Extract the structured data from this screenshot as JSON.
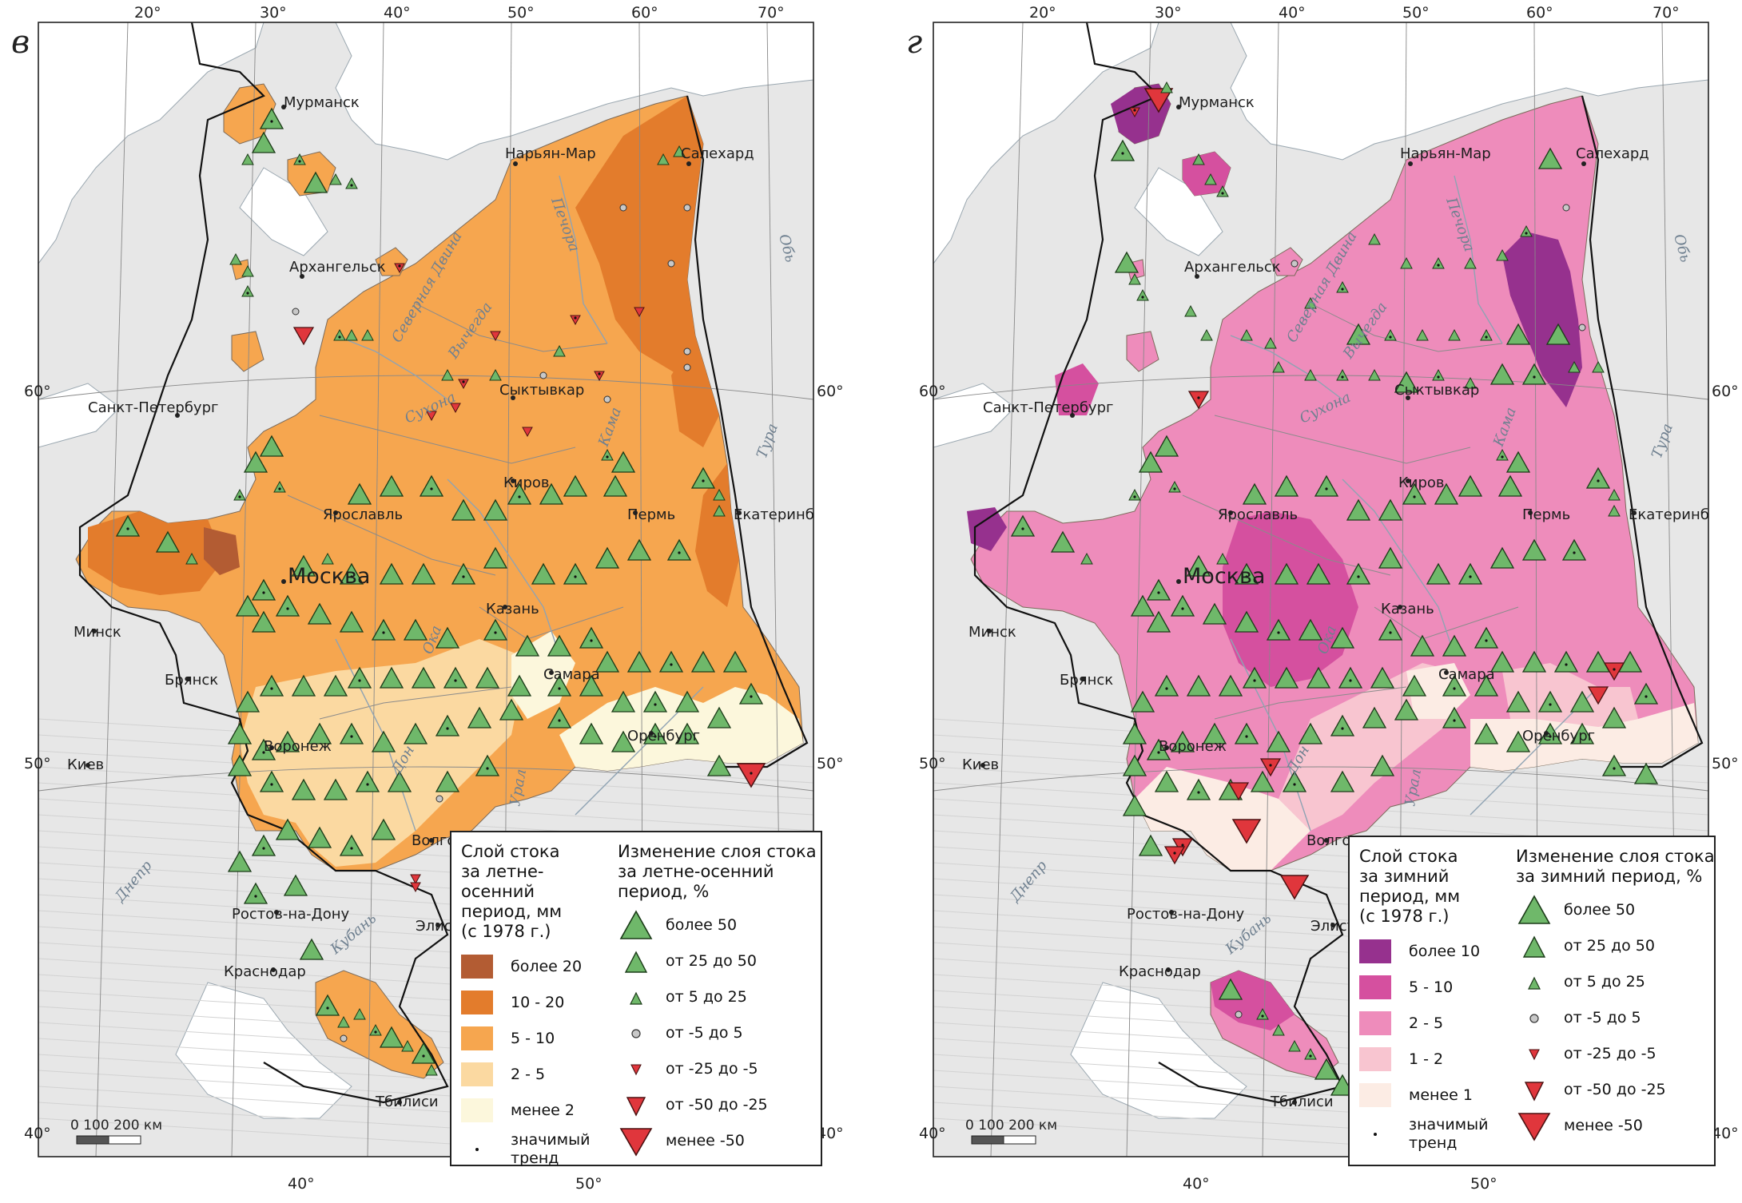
{
  "colors": {
    "land": "#e7e7e7",
    "sea": "#ffffff",
    "boundary": "#111111",
    "tri_up_fill": "#6fb86a",
    "tri_down_fill": "#e0363c",
    "circle_fill": "#c8c8c8"
  },
  "panels": [
    {
      "id": "v",
      "letter": "в",
      "top_ticks": [
        "20°",
        "30°",
        "40°",
        "50°",
        "60°",
        "70°"
      ],
      "bottom_ticks": [
        "40°",
        "50°"
      ],
      "left_ticks": [
        "60°",
        "50°",
        "40°"
      ],
      "right_ticks": [
        "60°",
        "50°",
        "40°"
      ],
      "scale_label": "0   100  200 км",
      "cities": [
        "Мурманск",
        "Нарьян-Мар",
        "Салехард",
        "Архангельск",
        "Санкт-Петербург",
        "Сыктывкар",
        "Киров",
        "Ярославль",
        "Пермь",
        "Екатеринбург",
        "Москва",
        "Минск",
        "Казань",
        "Брянск",
        "Самара",
        "Киев",
        "Воронеж",
        "Оренбург",
        "Волгоград",
        "Ростов-на-Дону",
        "Элиста",
        "Краснодар",
        "Тбилиси"
      ],
      "rivers": [
        "Северная Двина",
        "Вычегда",
        "Сухона",
        "Печора",
        "Кама",
        "Обь",
        "Тура",
        "Днепр",
        "Кубань",
        "Урал",
        "Ока",
        "Дон"
      ],
      "legend": {
        "layer_title": [
          "Слой стока",
          "за летне-осенний",
          "период, мм",
          "(с 1978 г.)"
        ],
        "layer_classes": [
          {
            "label": "более 20",
            "color": "#b35c33"
          },
          {
            "label": "10 - 20",
            "color": "#e37c2c"
          },
          {
            "label": "5 - 10",
            "color": "#f6a64f"
          },
          {
            "label": "2 - 5",
            "color": "#fbd9a1"
          },
          {
            "label": "менее 2",
            "color": "#fcf7dc"
          }
        ],
        "trend_label": [
          "значимый",
          "тренд"
        ],
        "change_title": [
          "Изменение слоя стока",
          "за летне-осенний",
          "период, %"
        ],
        "change_classes": [
          "более 50",
          "от 25 до 50",
          "от 5 до 25",
          "от -5 до 5",
          "от -25 до -5",
          "от -50 до -25",
          "менее -50"
        ]
      }
    },
    {
      "id": "g",
      "letter": "г",
      "top_ticks": [
        "20°",
        "30°",
        "40°",
        "50°",
        "60°",
        "70°"
      ],
      "bottom_ticks": [
        "40°",
        "50°"
      ],
      "left_ticks": [
        "60°",
        "50°",
        "40°"
      ],
      "right_ticks": [
        "60°",
        "50°",
        "40°"
      ],
      "scale_label": "0   100  200 км",
      "cities": [
        "Мурманск",
        "Нарьян-Мар",
        "Салехард",
        "Архангельск",
        "Санкт-Петербург",
        "Сыктывкар",
        "Киров",
        "Ярославль",
        "Пермь",
        "Екатеринбург",
        "Москва",
        "Минск",
        "Казань",
        "Брянск",
        "Самара",
        "Киев",
        "Воронеж",
        "Оренбург",
        "Волгоград",
        "Ростов-на-Дону",
        "Элиста",
        "Краснодар",
        "Тбилиси"
      ],
      "rivers": [
        "Северная Двина",
        "Вычегда",
        "Сухона",
        "Печора",
        "Кама",
        "Обь",
        "Тура",
        "Днепр",
        "Кубань",
        "Урал",
        "Ока",
        "Дон"
      ],
      "legend": {
        "layer_title": [
          "Слой стока",
          "за зимний",
          "период, мм",
          "(с 1978 г.)"
        ],
        "layer_classes": [
          {
            "label": "более 10",
            "color": "#96318e"
          },
          {
            "label": "5 - 10",
            "color": "#d5509f"
          },
          {
            "label": "2 - 5",
            "color": "#ee8cbb"
          },
          {
            "label": "1 - 2",
            "color": "#f8c5d0"
          },
          {
            "label": "менее 1",
            "color": "#fcece4"
          }
        ],
        "trend_label": [
          "значимый",
          "тренд"
        ],
        "change_title": [
          "Изменение слоя стока",
          "за зимний период, %"
        ],
        "change_classes": [
          "более 50",
          "от 25 до 50",
          "от 5 до 25",
          "от -5 до 5",
          "от -25 до -5",
          "от -50 до -25",
          "менее -50"
        ]
      }
    }
  ]
}
